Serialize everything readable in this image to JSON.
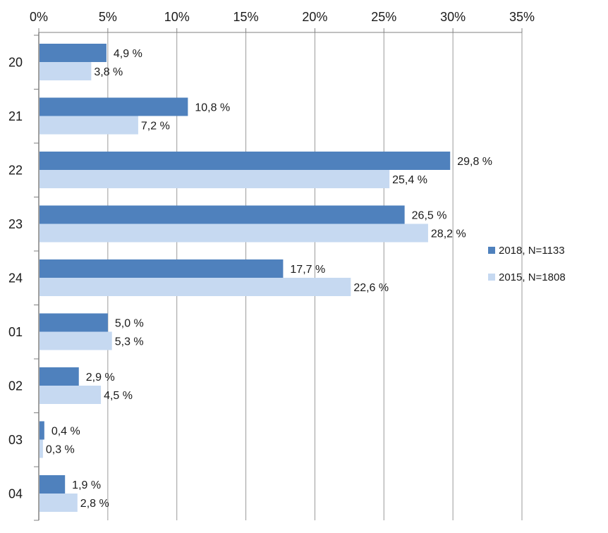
{
  "chart_data": {
    "type": "bar",
    "orientation": "horizontal",
    "categories": [
      "20",
      "21",
      "22",
      "23",
      "24",
      "01",
      "02",
      "03",
      "04"
    ],
    "series": [
      {
        "name": "2018, N=1133",
        "color": "#4f81bd",
        "values": [
          4.9,
          10.8,
          29.8,
          26.5,
          17.7,
          5.0,
          2.9,
          0.4,
          1.9
        ],
        "labels": [
          "4,9 %",
          "10,8 %",
          "29,8 %",
          "26,5 %",
          "17,7 %",
          "5,0 %",
          "2,9 %",
          "0,4 %",
          "1,9 %"
        ]
      },
      {
        "name": "2015, N=1808",
        "color": "#c6d9f1",
        "values": [
          3.8,
          7.2,
          25.4,
          28.2,
          22.6,
          5.3,
          4.5,
          0.3,
          2.8
        ],
        "labels": [
          "3,8 %",
          "7,2 %",
          "25,4 %",
          "28,2 %",
          "22,6 %",
          "5,3 %",
          "4,5 %",
          "0,3 %",
          "2,8 %"
        ]
      }
    ],
    "xlim": [
      0,
      35
    ],
    "x_ticks": [
      0,
      5,
      10,
      15,
      20,
      25,
      30,
      35
    ],
    "x_tick_labels": [
      "0%",
      "5%",
      "10%",
      "15%",
      "20%",
      "25%",
      "30%",
      "35%"
    ],
    "x_axis_position": "top",
    "grid": true,
    "legend": "right",
    "title": "",
    "xlabel": "",
    "ylabel": ""
  }
}
